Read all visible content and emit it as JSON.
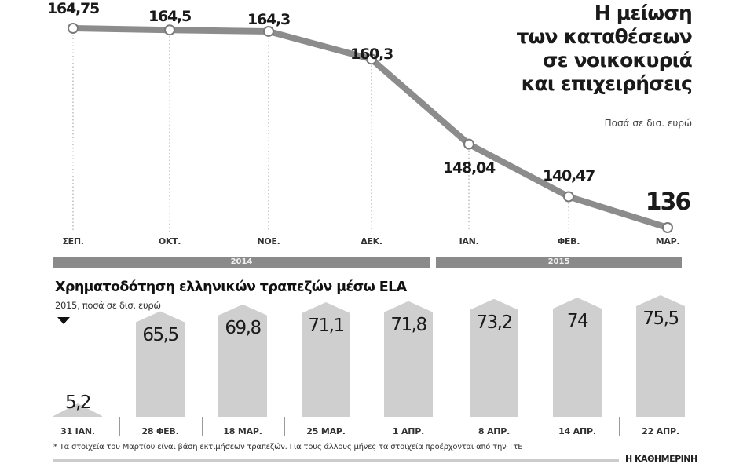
{
  "header": {
    "title_lines": [
      "Η μείωση",
      "των καταθέσεων",
      "σε νοικοκυριά",
      "και επιχειρήσεις"
    ],
    "subtitle": "Ποσά σε δισ. ευρώ"
  },
  "deposits": {
    "points": [
      {
        "month": "ΣΕΠ.",
        "value": "164,75"
      },
      {
        "month": "ΟΚΤ.",
        "value": "164,5"
      },
      {
        "month": "ΝΟΕ.",
        "value": "164,3"
      },
      {
        "month": "ΔΕΚ.",
        "value": "160,3"
      },
      {
        "month": "ΙΑΝ.",
        "value": "148,04"
      },
      {
        "month": "ΦΕΒ.",
        "value": "140,47"
      },
      {
        "month": "ΜΑΡ.",
        "value": "136"
      }
    ],
    "years": [
      "2014",
      "2015"
    ]
  },
  "ela": {
    "title": "Χρηματοδότηση ελληνικών τραπεζών μέσω ELA",
    "subtitle": "2015, ποσά σε δισ. ευρώ",
    "bars": [
      {
        "date": "31 ΙΑΝ.",
        "value": "5,2"
      },
      {
        "date": "28 ΦΕΒ.",
        "value": "65,5"
      },
      {
        "date": "18 ΜΑΡ.",
        "value": "69,8"
      },
      {
        "date": "25 ΜΑΡ.",
        "value": "71,1"
      },
      {
        "date": "1 ΑΠΡ.",
        "value": "71,8"
      },
      {
        "date": "8 ΑΠΡ.",
        "value": "73,2"
      },
      {
        "date": "14 ΑΠΡ.",
        "value": "74"
      },
      {
        "date": "22 ΑΠΡ.",
        "value": "75,5"
      }
    ]
  },
  "footer": {
    "note": "* Τα στοιχεία του Μαρτίου είναι βάση εκτιμήσεων τραπεζών. Για τους άλλους μήνες τα στοιχεία προέρχονται από την ΤτΕ",
    "brand": "Η ΚΑΘΗΜΕΡΙΝΗ"
  },
  "colors": {
    "line": "#8c8c8c",
    "bar": "#cfcfcf",
    "year_band": "#8a8a8a"
  },
  "chart_data": [
    {
      "type": "line",
      "title": "Η μείωση των καταθέσεων σε νοικοκυριά και επιχειρήσεις",
      "subtitle": "Ποσά σε δισ. ευρώ",
      "categories": [
        "ΣΕΠ.",
        "ΟΚΤ.",
        "ΝΟΕ.",
        "ΔΕΚ.",
        "ΙΑΝ.",
        "ΦΕΒ.",
        "ΜΑΡ."
      ],
      "values": [
        164.75,
        164.5,
        164.3,
        160.3,
        148.04,
        140.47,
        136
      ],
      "year_groups": [
        {
          "label": "2014",
          "categories": [
            "ΣΕΠ.",
            "ΟΚΤ.",
            "ΝΟΕ.",
            "ΔΕΚ."
          ]
        },
        {
          "label": "2015",
          "categories": [
            "ΙΑΝ.",
            "ΦΕΒ.",
            "ΜΑΡ."
          ]
        }
      ],
      "xlabel": "",
      "ylabel": "",
      "grid": false
    },
    {
      "type": "bar",
      "title": "Χρηματοδότηση ελληνικών τραπεζών μέσω ELA",
      "subtitle": "2015, ποσά σε δισ. ευρώ",
      "categories": [
        "31 ΙΑΝ.",
        "28 ΦΕΒ.",
        "18 ΜΑΡ.",
        "25 ΜΑΡ.",
        "1 ΑΠΡ.",
        "8 ΑΠΡ.",
        "14 ΑΠΡ.",
        "22 ΑΠΡ."
      ],
      "values": [
        5.2,
        65.5,
        69.8,
        71.1,
        71.8,
        73.2,
        74,
        75.5
      ],
      "xlabel": "",
      "ylabel": "",
      "grid": false
    }
  ]
}
